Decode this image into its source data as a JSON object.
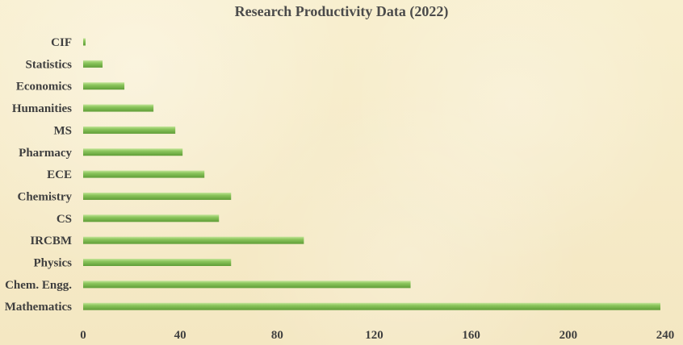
{
  "chart_data": {
    "type": "bar",
    "orientation": "horizontal",
    "title": "Research Productivity Data (2022)",
    "xlabel": "",
    "ylabel": "",
    "categories": [
      "CIF",
      "Statistics",
      "Economics",
      "Humanities",
      "MS",
      "Pharmacy",
      "ECE",
      "Chemistry",
      "CS",
      "IRCBM",
      "Physics",
      "Chem. Engg.",
      "Mathematics"
    ],
    "values": [
      1,
      8,
      17,
      29,
      38,
      41,
      50,
      61,
      56,
      91,
      61,
      135,
      238
    ],
    "xlim": [
      0,
      240
    ],
    "xticks": [
      0,
      40,
      80,
      120,
      160,
      200,
      240
    ],
    "grid": false,
    "legend": "none",
    "colors": {
      "bar": "#70ad47",
      "bar_highlight": "#b8dd88",
      "text": "#3f3f3f"
    }
  }
}
